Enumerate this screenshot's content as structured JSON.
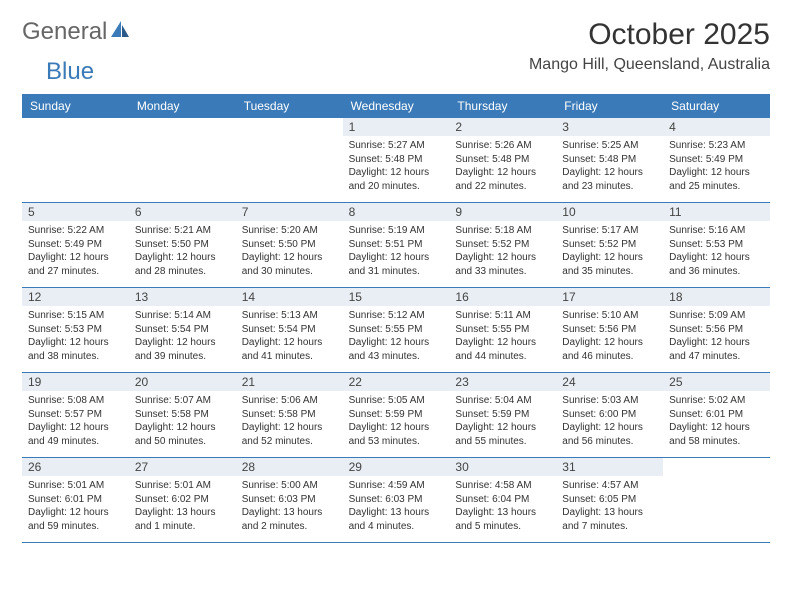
{
  "brand": {
    "part1": "General",
    "part2": "Blue"
  },
  "title": "October 2025",
  "location": "Mango Hill, Queensland, Australia",
  "day_headers": [
    "Sunday",
    "Monday",
    "Tuesday",
    "Wednesday",
    "Thursday",
    "Friday",
    "Saturday"
  ],
  "colors": {
    "header_bg": "#3a7ab8",
    "daynum_bg": "#e8eef4",
    "text": "#333333",
    "brand_blue": "#3a7ab8",
    "brand_gray": "#666666"
  },
  "weeks": [
    [
      {
        "n": "",
        "sr": "",
        "ss": "",
        "dl": ""
      },
      {
        "n": "",
        "sr": "",
        "ss": "",
        "dl": ""
      },
      {
        "n": "",
        "sr": "",
        "ss": "",
        "dl": ""
      },
      {
        "n": "1",
        "sr": "Sunrise: 5:27 AM",
        "ss": "Sunset: 5:48 PM",
        "dl": "Daylight: 12 hours and 20 minutes."
      },
      {
        "n": "2",
        "sr": "Sunrise: 5:26 AM",
        "ss": "Sunset: 5:48 PM",
        "dl": "Daylight: 12 hours and 22 minutes."
      },
      {
        "n": "3",
        "sr": "Sunrise: 5:25 AM",
        "ss": "Sunset: 5:48 PM",
        "dl": "Daylight: 12 hours and 23 minutes."
      },
      {
        "n": "4",
        "sr": "Sunrise: 5:23 AM",
        "ss": "Sunset: 5:49 PM",
        "dl": "Daylight: 12 hours and 25 minutes."
      }
    ],
    [
      {
        "n": "5",
        "sr": "Sunrise: 5:22 AM",
        "ss": "Sunset: 5:49 PM",
        "dl": "Daylight: 12 hours and 27 minutes."
      },
      {
        "n": "6",
        "sr": "Sunrise: 5:21 AM",
        "ss": "Sunset: 5:50 PM",
        "dl": "Daylight: 12 hours and 28 minutes."
      },
      {
        "n": "7",
        "sr": "Sunrise: 5:20 AM",
        "ss": "Sunset: 5:50 PM",
        "dl": "Daylight: 12 hours and 30 minutes."
      },
      {
        "n": "8",
        "sr": "Sunrise: 5:19 AM",
        "ss": "Sunset: 5:51 PM",
        "dl": "Daylight: 12 hours and 31 minutes."
      },
      {
        "n": "9",
        "sr": "Sunrise: 5:18 AM",
        "ss": "Sunset: 5:52 PM",
        "dl": "Daylight: 12 hours and 33 minutes."
      },
      {
        "n": "10",
        "sr": "Sunrise: 5:17 AM",
        "ss": "Sunset: 5:52 PM",
        "dl": "Daylight: 12 hours and 35 minutes."
      },
      {
        "n": "11",
        "sr": "Sunrise: 5:16 AM",
        "ss": "Sunset: 5:53 PM",
        "dl": "Daylight: 12 hours and 36 minutes."
      }
    ],
    [
      {
        "n": "12",
        "sr": "Sunrise: 5:15 AM",
        "ss": "Sunset: 5:53 PM",
        "dl": "Daylight: 12 hours and 38 minutes."
      },
      {
        "n": "13",
        "sr": "Sunrise: 5:14 AM",
        "ss": "Sunset: 5:54 PM",
        "dl": "Daylight: 12 hours and 39 minutes."
      },
      {
        "n": "14",
        "sr": "Sunrise: 5:13 AM",
        "ss": "Sunset: 5:54 PM",
        "dl": "Daylight: 12 hours and 41 minutes."
      },
      {
        "n": "15",
        "sr": "Sunrise: 5:12 AM",
        "ss": "Sunset: 5:55 PM",
        "dl": "Daylight: 12 hours and 43 minutes."
      },
      {
        "n": "16",
        "sr": "Sunrise: 5:11 AM",
        "ss": "Sunset: 5:55 PM",
        "dl": "Daylight: 12 hours and 44 minutes."
      },
      {
        "n": "17",
        "sr": "Sunrise: 5:10 AM",
        "ss": "Sunset: 5:56 PM",
        "dl": "Daylight: 12 hours and 46 minutes."
      },
      {
        "n": "18",
        "sr": "Sunrise: 5:09 AM",
        "ss": "Sunset: 5:56 PM",
        "dl": "Daylight: 12 hours and 47 minutes."
      }
    ],
    [
      {
        "n": "19",
        "sr": "Sunrise: 5:08 AM",
        "ss": "Sunset: 5:57 PM",
        "dl": "Daylight: 12 hours and 49 minutes."
      },
      {
        "n": "20",
        "sr": "Sunrise: 5:07 AM",
        "ss": "Sunset: 5:58 PM",
        "dl": "Daylight: 12 hours and 50 minutes."
      },
      {
        "n": "21",
        "sr": "Sunrise: 5:06 AM",
        "ss": "Sunset: 5:58 PM",
        "dl": "Daylight: 12 hours and 52 minutes."
      },
      {
        "n": "22",
        "sr": "Sunrise: 5:05 AM",
        "ss": "Sunset: 5:59 PM",
        "dl": "Daylight: 12 hours and 53 minutes."
      },
      {
        "n": "23",
        "sr": "Sunrise: 5:04 AM",
        "ss": "Sunset: 5:59 PM",
        "dl": "Daylight: 12 hours and 55 minutes."
      },
      {
        "n": "24",
        "sr": "Sunrise: 5:03 AM",
        "ss": "Sunset: 6:00 PM",
        "dl": "Daylight: 12 hours and 56 minutes."
      },
      {
        "n": "25",
        "sr": "Sunrise: 5:02 AM",
        "ss": "Sunset: 6:01 PM",
        "dl": "Daylight: 12 hours and 58 minutes."
      }
    ],
    [
      {
        "n": "26",
        "sr": "Sunrise: 5:01 AM",
        "ss": "Sunset: 6:01 PM",
        "dl": "Daylight: 12 hours and 59 minutes."
      },
      {
        "n": "27",
        "sr": "Sunrise: 5:01 AM",
        "ss": "Sunset: 6:02 PM",
        "dl": "Daylight: 13 hours and 1 minute."
      },
      {
        "n": "28",
        "sr": "Sunrise: 5:00 AM",
        "ss": "Sunset: 6:03 PM",
        "dl": "Daylight: 13 hours and 2 minutes."
      },
      {
        "n": "29",
        "sr": "Sunrise: 4:59 AM",
        "ss": "Sunset: 6:03 PM",
        "dl": "Daylight: 13 hours and 4 minutes."
      },
      {
        "n": "30",
        "sr": "Sunrise: 4:58 AM",
        "ss": "Sunset: 6:04 PM",
        "dl": "Daylight: 13 hours and 5 minutes."
      },
      {
        "n": "31",
        "sr": "Sunrise: 4:57 AM",
        "ss": "Sunset: 6:05 PM",
        "dl": "Daylight: 13 hours and 7 minutes."
      },
      {
        "n": "",
        "sr": "",
        "ss": "",
        "dl": ""
      }
    ]
  ]
}
